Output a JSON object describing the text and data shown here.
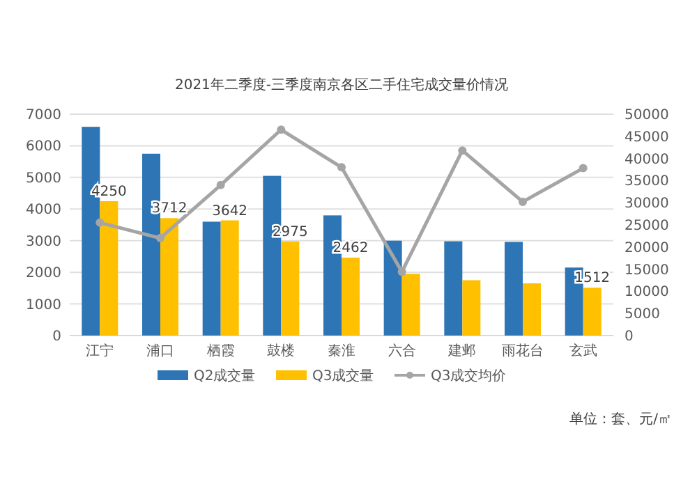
{
  "chart_data": {
    "type": "bar",
    "title": "2021年二季度-三季度南京各区二手住宅成交量价情况",
    "categories": [
      "江宁",
      "浦口",
      "栖霞",
      "鼓楼",
      "秦淮",
      "六合",
      "建邺",
      "雨花台",
      "玄武"
    ],
    "series": [
      {
        "name": "Q2成交量",
        "color": "#2e75b6",
        "values": [
          6600,
          5750,
          3600,
          5050,
          3800,
          3000,
          2980,
          2960,
          2150
        ]
      },
      {
        "name": "Q3成交量",
        "color": "#ffc000",
        "values": [
          4250,
          3712,
          3642,
          2975,
          2462,
          1950,
          1750,
          1650,
          1512
        ],
        "value_labels": [
          "4250",
          "3712",
          "3642",
          "2975",
          "2462",
          null,
          null,
          null,
          "1512"
        ]
      },
      {
        "name": "Q3成交均价",
        "type": "line",
        "axis": "y2",
        "color": "#a5a5a5",
        "marker": "circle",
        "values": [
          25500,
          22000,
          34000,
          46500,
          38000,
          14400,
          41800,
          30200,
          37800
        ]
      }
    ],
    "ylim": [
      0,
      7000
    ],
    "yticks": [
      0,
      1000,
      2000,
      3000,
      4000,
      5000,
      6000,
      7000
    ],
    "y2lim": [
      0,
      50000
    ],
    "y2ticks": [
      0,
      5000,
      10000,
      15000,
      20000,
      25000,
      30000,
      35000,
      40000,
      45000,
      50000
    ],
    "grid": "y",
    "legend": "bottom",
    "annotations": [
      "单位：套、元/㎡"
    ]
  }
}
